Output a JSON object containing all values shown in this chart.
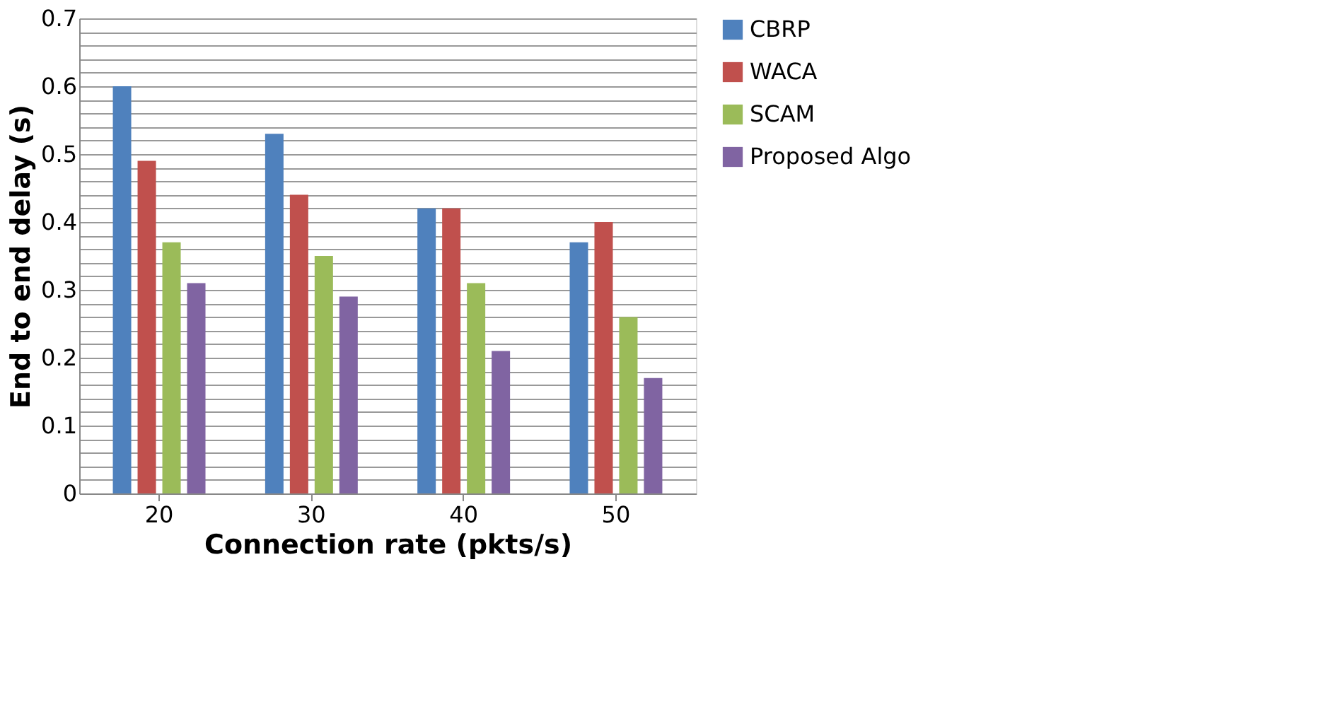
{
  "chart_data": {
    "type": "bar",
    "xlabel": "Connection rate (pkts/s)",
    "ylabel": "End to end delay (s)",
    "categories": [
      "20",
      "30",
      "40",
      "50"
    ],
    "series": [
      {
        "name": "CBRP",
        "color": "#4f81bd",
        "values": [
          0.6,
          0.53,
          0.42,
          0.37
        ]
      },
      {
        "name": "WACA",
        "color": "#c0504d",
        "values": [
          0.49,
          0.44,
          0.42,
          0.4
        ]
      },
      {
        "name": "SCAM",
        "color": "#9bbb59",
        "values": [
          0.37,
          0.35,
          0.31,
          0.26
        ]
      },
      {
        "name": "Proposed Algo",
        "color": "#8064a2",
        "values": [
          0.31,
          0.29,
          0.21,
          0.17
        ]
      }
    ],
    "ylim": [
      0,
      0.7
    ],
    "yticks": [
      0,
      {
        "value": 0.02,
        "label": null
      },
      {
        "value": 0.04,
        "label": null
      },
      {
        "value": 0.06,
        "label": null
      },
      {
        "value": 0.08,
        "label": null
      },
      0.1,
      {
        "value": 0.12,
        "label": null
      },
      {
        "value": 0.14,
        "label": null
      },
      {
        "value": 0.16,
        "label": null
      },
      {
        "value": 0.18,
        "label": null
      },
      0.2,
      {
        "value": 0.22,
        "label": null
      },
      {
        "value": 0.24,
        "label": null
      },
      {
        "value": 0.26,
        "label": null
      },
      {
        "value": 0.28,
        "label": null
      },
      0.3,
      {
        "value": 0.32,
        "label": null
      },
      {
        "value": 0.34,
        "label": null
      },
      {
        "value": 0.36,
        "label": null
      },
      {
        "value": 0.38,
        "label": null
      },
      0.4,
      {
        "value": 0.42,
        "label": null
      },
      {
        "value": 0.44,
        "label": null
      },
      {
        "value": 0.46,
        "label": null
      },
      {
        "value": 0.48,
        "label": null
      },
      0.5,
      {
        "value": 0.52,
        "label": null
      },
      {
        "value": 0.54,
        "label": null
      },
      {
        "value": 0.56,
        "label": null
      },
      {
        "value": 0.58,
        "label": null
      },
      0.6,
      {
        "value": 0.62,
        "label": null
      },
      {
        "value": 0.64,
        "label": null
      },
      {
        "value": 0.66,
        "label": null
      },
      {
        "value": 0.68,
        "label": null
      },
      0.7
    ],
    "grid": true,
    "legend": "right"
  }
}
